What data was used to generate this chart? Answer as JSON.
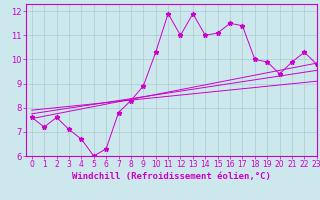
{
  "xlabel": "Windchill (Refroidissement éolien,°C)",
  "ylabel": "",
  "bg_color": "#cce8ec",
  "line_color": "#cc00cc",
  "xlim": [
    -0.5,
    23
  ],
  "ylim": [
    6,
    12.3
  ],
  "xticks": [
    0,
    1,
    2,
    3,
    4,
    5,
    6,
    7,
    8,
    9,
    10,
    11,
    12,
    13,
    14,
    15,
    16,
    17,
    18,
    19,
    20,
    21,
    22,
    23
  ],
  "yticks": [
    6,
    7,
    8,
    9,
    10,
    11,
    12
  ],
  "main_series_x": [
    0,
    1,
    2,
    3,
    4,
    5,
    6,
    7,
    8,
    9,
    10,
    11,
    12,
    13,
    14,
    15,
    16,
    17,
    18,
    19,
    20,
    21,
    22,
    23
  ],
  "main_series_y": [
    7.6,
    7.2,
    7.6,
    7.1,
    6.7,
    6.0,
    6.3,
    7.8,
    8.3,
    8.9,
    10.3,
    11.9,
    11.0,
    11.9,
    11.0,
    11.1,
    11.5,
    11.4,
    10.0,
    9.9,
    9.4,
    9.9,
    10.3,
    9.8
  ],
  "line1_x": [
    0,
    23
  ],
  "line1_y": [
    7.55,
    9.85
  ],
  "line2_x": [
    0,
    23
  ],
  "line2_y": [
    7.75,
    9.55
  ],
  "line3_x": [
    0,
    23
  ],
  "line3_y": [
    7.9,
    9.1
  ],
  "grid_color": "#aaccd2",
  "tick_fontsize": 5.5,
  "xlabel_fontsize": 6.5
}
